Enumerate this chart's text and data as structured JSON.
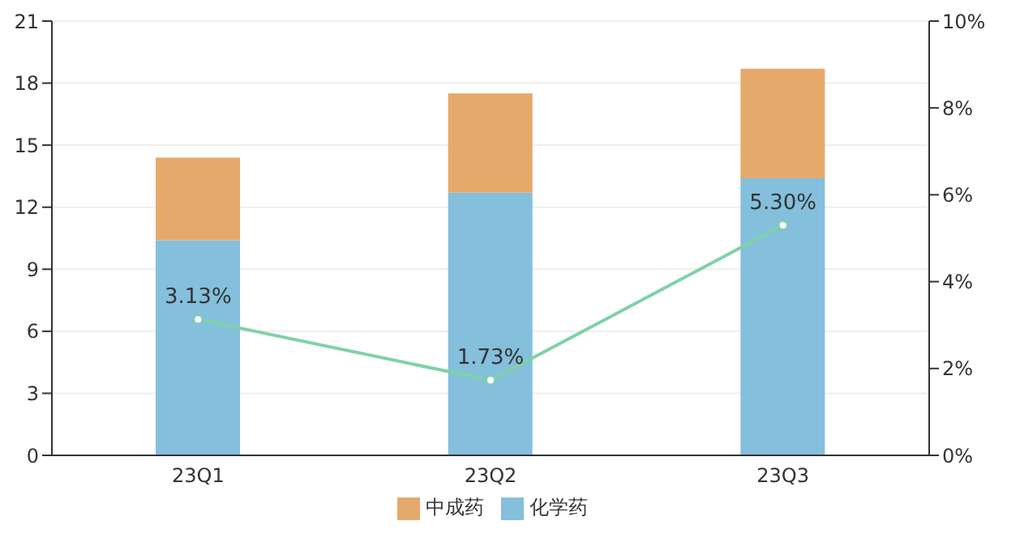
{
  "chart_data": {
    "type": "bar",
    "stacked": true,
    "categories": [
      "23Q1",
      "23Q2",
      "23Q3"
    ],
    "series": [
      {
        "name": "化学药",
        "color": "#84bfdc",
        "values": [
          10.4,
          12.7,
          13.4
        ]
      },
      {
        "name": "中成药",
        "color": "#e6a96c",
        "values": [
          4.0,
          4.8,
          5.3
        ]
      },
      {
        "type": "line",
        "axis": "y2",
        "color": "#7fd1a8",
        "marker": "circle",
        "values": [
          3.13,
          1.73,
          5.3
        ],
        "value_labels": [
          "3.13%",
          "1.73%",
          "5.30%"
        ]
      }
    ],
    "ylim": [
      0,
      21
    ],
    "yticks": [
      0,
      3,
      6,
      9,
      12,
      15,
      18,
      21
    ],
    "y2lim": [
      0,
      10
    ],
    "y2ticks": [
      {
        "value": 0,
        "label": "0%"
      },
      {
        "value": 2,
        "label": "2%"
      },
      {
        "value": 4,
        "label": "4%"
      },
      {
        "value": 6,
        "label": "6%"
      },
      {
        "value": 8,
        "label": "8%"
      },
      {
        "value": 10,
        "label": "10%"
      }
    ],
    "grid": "y",
    "legend": "bottom"
  }
}
